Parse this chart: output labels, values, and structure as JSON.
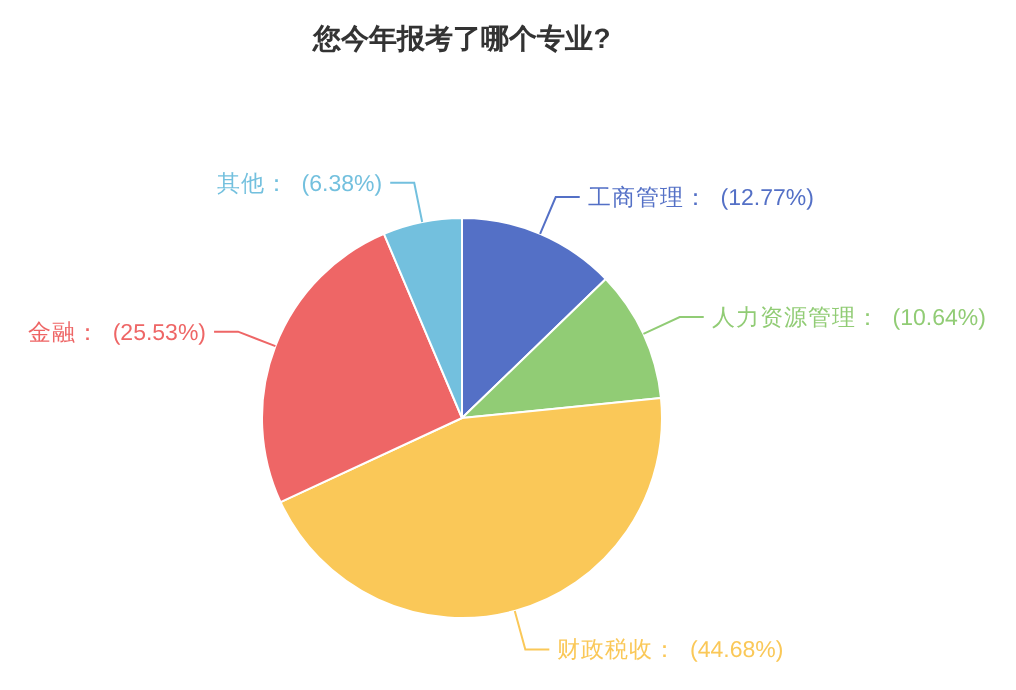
{
  "chart_data": {
    "type": "pie",
    "title": "您今年报考了哪个专业?",
    "categories": [
      "工商管理",
      "人力资源管理",
      "财政税收",
      "金融",
      "其他"
    ],
    "values": [
      12.77,
      10.64,
      44.68,
      25.53,
      6.38
    ],
    "value_labels": [
      "(12.77%)",
      "(10.64%)",
      "(44.68%)",
      "(25.53%)",
      "(6.38%)"
    ],
    "colors": [
      "#5470c6",
      "#91cc75",
      "#fac858",
      "#ee6666",
      "#73c0de"
    ]
  }
}
